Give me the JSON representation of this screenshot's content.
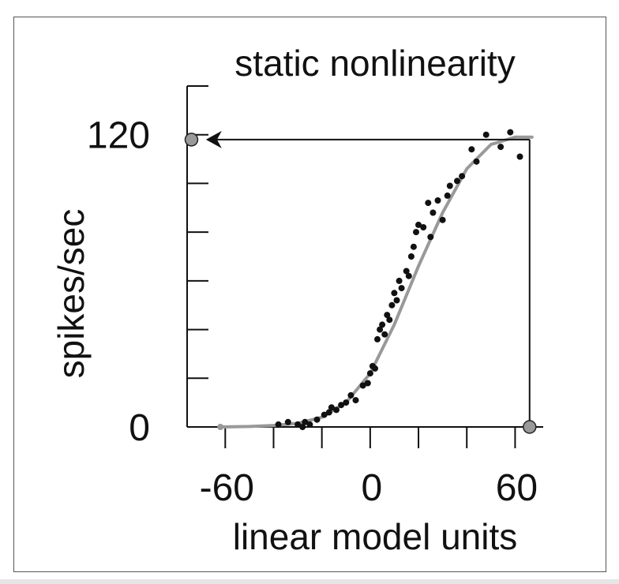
{
  "chart_data": {
    "type": "scatter",
    "title": "static nonlinearity",
    "xlabel": "linear model units",
    "ylabel": "spikes/sec",
    "xlim": [
      -65,
      70
    ],
    "ylim": [
      0,
      140
    ],
    "x_ticks": [
      -60,
      -40,
      -20,
      0,
      20,
      40,
      60
    ],
    "y_ticks": [
      0,
      20,
      40,
      60,
      80,
      100,
      120,
      140
    ],
    "x_tick_labels": [
      {
        "value": -60,
        "label": "-60"
      },
      {
        "value": 0,
        "label": "0"
      },
      {
        "value": 60,
        "label": "60"
      }
    ],
    "y_tick_labels": [
      {
        "value": 0,
        "label": "0"
      },
      {
        "value": 120,
        "label": "120"
      }
    ],
    "grid": false,
    "colors": {
      "points": "#111111",
      "fit_curve": "#999999",
      "markers": "#999999",
      "axes": "#111111"
    },
    "fit_curve": {
      "name": "",
      "points": [
        [
          -62,
          0
        ],
        [
          -50,
          0.2
        ],
        [
          -40,
          0.6
        ],
        [
          -30,
          1.5
        ],
        [
          -20,
          4
        ],
        [
          -10,
          10
        ],
        [
          0,
          22
        ],
        [
          10,
          42
        ],
        [
          20,
          66
        ],
        [
          30,
          88
        ],
        [
          40,
          106
        ],
        [
          50,
          116
        ],
        [
          60,
          119
        ],
        [
          67,
          119
        ]
      ]
    },
    "annotations": {
      "arrow": {
        "from": [
          66,
          118
        ],
        "to": [
          -68,
          118
        ]
      },
      "vertical_line": {
        "x": 66,
        "y_from": 0,
        "y_to": 118
      },
      "markers": [
        [
          66,
          0
        ],
        [
          -74,
          118
        ]
      ]
    },
    "series": [
      {
        "values": [
          [
            -38,
            1
          ],
          [
            -34,
            2
          ],
          [
            -30,
            1
          ],
          [
            -28,
            0
          ],
          [
            -27,
            2
          ],
          [
            -25,
            1
          ],
          [
            -22,
            3
          ],
          [
            -19,
            5
          ],
          [
            -17,
            6
          ],
          [
            -16,
            8
          ],
          [
            -14,
            7
          ],
          [
            -12,
            9
          ],
          [
            -10,
            10
          ],
          [
            -8,
            13
          ],
          [
            -6,
            11
          ],
          [
            -3,
            17
          ],
          [
            -1,
            18
          ],
          [
            0,
            22
          ],
          [
            1,
            25
          ],
          [
            2,
            24
          ],
          [
            3,
            36
          ],
          [
            4,
            40
          ],
          [
            5,
            42
          ],
          [
            6,
            38
          ],
          [
            7,
            46
          ],
          [
            8,
            44
          ],
          [
            9,
            50
          ],
          [
            10,
            55
          ],
          [
            11,
            52
          ],
          [
            12,
            60
          ],
          [
            13,
            57
          ],
          [
            15,
            64
          ],
          [
            16,
            62
          ],
          [
            17,
            70
          ],
          [
            18,
            74
          ],
          [
            19,
            80
          ],
          [
            20,
            83
          ],
          [
            22,
            82
          ],
          [
            24,
            92
          ],
          [
            25,
            78
          ],
          [
            26,
            88
          ],
          [
            28,
            93
          ],
          [
            30,
            85
          ],
          [
            32,
            95
          ],
          [
            33,
            99
          ],
          [
            36,
            101
          ],
          [
            38,
            103
          ],
          [
            42,
            114
          ],
          [
            44,
            109
          ],
          [
            48,
            120
          ],
          [
            54,
            115
          ],
          [
            58,
            121
          ],
          [
            62,
            111
          ]
        ]
      }
    ]
  }
}
